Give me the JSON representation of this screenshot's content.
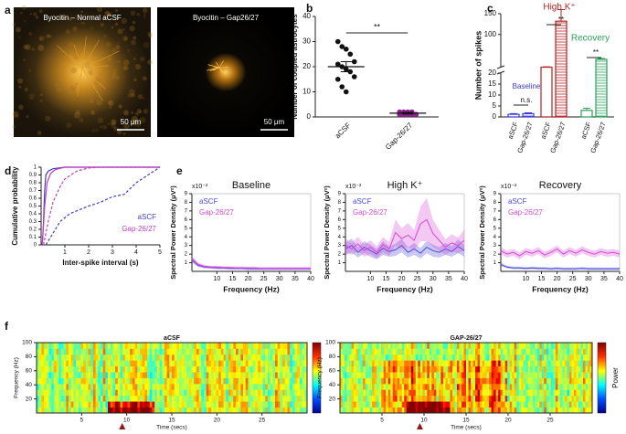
{
  "panel_labels": [
    "a",
    "b",
    "c",
    "d",
    "e",
    "f"
  ],
  "images": [
    {
      "caption": "Byocitin – Normal aCSF",
      "scale_bar": "50 μm"
    },
    {
      "caption": "Byocitin – Gap26/27",
      "scale_bar": "50 μm"
    }
  ],
  "chart_data": [
    {
      "type": "strip",
      "ylabel": "Number of coupled astrocytes",
      "categories": [
        "aCSF",
        "Gap-26/27"
      ],
      "values": [
        [
          30,
          28,
          27,
          25,
          22,
          21,
          20,
          19,
          18,
          16,
          15,
          12,
          10
        ],
        [
          2,
          2,
          2,
          2,
          1,
          1,
          1,
          1,
          1,
          1,
          1,
          1
        ]
      ],
      "colors": [
        "#111111",
        "#8e1f8e"
      ],
      "means": [
        20,
        1.5
      ],
      "mean_errors": [
        2,
        0.3
      ],
      "ylim": [
        0,
        40
      ],
      "yticks": [
        0,
        10,
        20,
        30,
        40
      ],
      "annotations": [
        "**"
      ]
    },
    {
      "type": "bar",
      "ylabel": "Number of spikes",
      "ylim": [
        0,
        150
      ],
      "ybreak": 20,
      "yticks": [
        0,
        5,
        10,
        15,
        20,
        100,
        150
      ],
      "series": [
        {
          "name": "Baseline",
          "color": "#3a3adb",
          "categories": [
            "aSCF",
            "Gap-26/27"
          ],
          "values": [
            1.2,
            1.5
          ],
          "errors": [
            0.3,
            0.4
          ]
        },
        {
          "name": "High K⁺",
          "color": "#b22222",
          "categories": [
            "aSCF",
            "Gap-26/27"
          ],
          "values": [
            21,
            132
          ],
          "errors": [
            1,
            28
          ]
        },
        {
          "name": "Recovery",
          "color": "#2ca05a",
          "categories": [
            "aCSF",
            "Gap-26/27"
          ],
          "values": [
            3,
            40
          ],
          "errors": [
            1,
            2
          ]
        }
      ],
      "annotations": [
        "n.s.",
        "**",
        "**"
      ]
    },
    {
      "type": "cdf",
      "ylabel": "Cumulative probability",
      "xlabel": "Inter-spike interval (s)",
      "xlim": [
        0,
        5
      ],
      "xticks": [
        1,
        2,
        3,
        4,
        5
      ],
      "ylim": [
        0,
        1
      ],
      "yticks": [
        0,
        0.1,
        0.2,
        0.3,
        0.4,
        0.5,
        0.6,
        0.7,
        0.8,
        0.9,
        1
      ],
      "series": [
        {
          "name": "aSCF",
          "color": "#4040c0",
          "style": "solid",
          "x": [
            0.05,
            0.1,
            0.15,
            0.2,
            0.3,
            0.5,
            1,
            2,
            5
          ],
          "values": [
            0,
            0.3,
            0.7,
            0.9,
            0.95,
            0.98,
            1,
            1,
            1
          ]
        },
        {
          "color": "#4040c0",
          "style": "dashed",
          "x": [
            0.2,
            0.5,
            0.8,
            1.2,
            1.6,
            2,
            2.5,
            3,
            3.5,
            4,
            4.5,
            5
          ],
          "values": [
            0,
            0.15,
            0.3,
            0.4,
            0.45,
            0.5,
            0.55,
            0.62,
            0.65,
            0.8,
            0.9,
            1
          ]
        },
        {
          "name": "Gap-26/27",
          "color": "#c040c0",
          "style": "solid",
          "x": [
            0.05,
            0.15,
            0.25,
            0.4,
            0.6,
            1,
            5
          ],
          "values": [
            0,
            0.5,
            0.8,
            0.92,
            0.97,
            1,
            1
          ]
        },
        {
          "color": "#c040c0",
          "style": "dashed",
          "x": [
            0.1,
            0.3,
            0.5,
            0.8,
            1,
            1.5,
            2,
            2.5,
            5
          ],
          "values": [
            0,
            0.3,
            0.55,
            0.75,
            0.85,
            0.95,
            0.99,
            1,
            1
          ]
        }
      ]
    },
    {
      "type": "band",
      "title": "Baseline",
      "exponent": "x10⁻²",
      "ylabel": "Spectral Power Density (μV²)",
      "xlabel": "Frequency (Hz)",
      "xlim": [
        2,
        40
      ],
      "xticks": [
        10,
        15,
        20,
        25,
        30,
        35,
        40
      ],
      "ylim": [
        0,
        9
      ],
      "yticks": [
        1,
        2,
        3,
        4,
        5,
        6,
        7,
        8,
        9
      ],
      "x": [
        2,
        4,
        6,
        8,
        10,
        12,
        14,
        16,
        18,
        20,
        22,
        24,
        26,
        28,
        30,
        32,
        34,
        36,
        38,
        40
      ],
      "series": [
        {
          "name": "aSCF",
          "color": "#4a4ad8",
          "values": [
            1.3,
            0.7,
            0.5,
            0.45,
            0.4,
            0.4,
            0.35,
            0.35,
            0.35,
            0.3,
            0.3,
            0.3,
            0.3,
            0.3,
            0.3,
            0.3,
            0.3,
            0.3,
            0.3,
            0.3
          ],
          "errors": [
            0.3,
            0.2,
            0.15,
            0.15,
            0.15,
            0.15,
            0.15,
            0.15,
            0.15,
            0.15,
            0.15,
            0.15,
            0.15,
            0.15,
            0.15,
            0.15,
            0.15,
            0.15,
            0.15,
            0.15
          ]
        },
        {
          "name": "Gap-26/27",
          "color": "#d84ad8",
          "values": [
            1.5,
            0.8,
            0.6,
            0.5,
            0.5,
            0.45,
            0.45,
            0.4,
            0.4,
            0.4,
            0.4,
            0.35,
            0.35,
            0.35,
            0.35,
            0.35,
            0.35,
            0.35,
            0.35,
            0.35
          ],
          "errors": [
            0.3,
            0.2,
            0.15,
            0.15,
            0.15,
            0.15,
            0.15,
            0.15,
            0.15,
            0.15,
            0.15,
            0.15,
            0.15,
            0.15,
            0.15,
            0.15,
            0.15,
            0.15,
            0.15,
            0.15
          ]
        }
      ]
    },
    {
      "type": "band",
      "title": "High K⁺",
      "exponent": "x10⁻²",
      "ylabel": "Spectral Power Density (μV²)",
      "xlabel": "Frequency (Hz)",
      "xlim": [
        2,
        40
      ],
      "xticks": [
        10,
        15,
        20,
        25,
        30,
        35,
        40
      ],
      "ylim": [
        0,
        9
      ],
      "yticks": [
        1,
        2,
        3,
        4,
        5,
        6,
        7,
        8,
        9
      ],
      "x": [
        2,
        4,
        6,
        8,
        10,
        12,
        14,
        16,
        18,
        20,
        22,
        24,
        26,
        28,
        30,
        32,
        34,
        36,
        38,
        40
      ],
      "series": [
        {
          "name": "aSCF",
          "color": "#4a4ad8",
          "values": [
            2.6,
            3.0,
            2.2,
            2.8,
            2.4,
            2.0,
            2.7,
            2.3,
            2.5,
            3.0,
            2.2,
            2.6,
            2.1,
            2.8,
            2.4,
            2.2,
            2.6,
            2.3,
            2.9,
            2.4
          ],
          "errors": [
            0.7,
            0.8,
            0.6,
            0.7,
            0.7,
            0.6,
            0.8,
            0.6,
            0.7,
            0.8,
            0.6,
            0.7,
            0.6,
            0.7,
            0.7,
            0.6,
            0.7,
            0.6,
            0.8,
            0.7
          ]
        },
        {
          "name": "Gap-26/27",
          "color": "#d84ad8",
          "values": [
            3.0,
            2.6,
            3.2,
            2.4,
            2.8,
            2.2,
            3.1,
            2.6,
            4.5,
            3.8,
            4.2,
            3.6,
            5.5,
            6.0,
            4.4,
            3.6,
            2.8,
            3.3,
            3.0,
            3.6
          ],
          "errors": [
            0.8,
            0.7,
            0.8,
            0.7,
            0.8,
            0.7,
            0.9,
            0.8,
            1.5,
            1.2,
            1.4,
            1.2,
            2.0,
            2.5,
            1.6,
            1.2,
            0.9,
            1.0,
            0.9,
            1.2
          ]
        }
      ]
    },
    {
      "type": "band",
      "title": "Recovery",
      "exponent": "x10⁻²",
      "ylabel": "Spectral Power Density (μV²)",
      "xlabel": "Frequency (Hz)",
      "xlim": [
        2,
        40
      ],
      "xticks": [
        10,
        15,
        20,
        25,
        30,
        35,
        40
      ],
      "ylim": [
        0,
        9
      ],
      "yticks": [
        1,
        2,
        3,
        4,
        5,
        6,
        7,
        8,
        9
      ],
      "x": [
        2,
        4,
        6,
        8,
        10,
        12,
        14,
        16,
        18,
        20,
        22,
        24,
        26,
        28,
        30,
        32,
        34,
        36,
        38,
        40
      ],
      "series": [
        {
          "name": "aSCF",
          "color": "#4a4ad8",
          "values": [
            0.8,
            0.5,
            0.4,
            0.4,
            0.35,
            0.4,
            0.35,
            0.35,
            0.3,
            0.35,
            0.3,
            0.3,
            0.3,
            0.35,
            0.3,
            0.3,
            0.3,
            0.3,
            0.3,
            0.3
          ],
          "errors": [
            0.2,
            0.15,
            0.15,
            0.15,
            0.15,
            0.15,
            0.15,
            0.15,
            0.15,
            0.15,
            0.15,
            0.15,
            0.15,
            0.15,
            0.15,
            0.15,
            0.15,
            0.15,
            0.15,
            0.15
          ]
        },
        {
          "name": "Gap-26/27",
          "color": "#d84ad8",
          "values": [
            2.4,
            2.0,
            2.2,
            1.8,
            2.3,
            2.1,
            2.4,
            1.9,
            2.2,
            2.6,
            2.0,
            2.4,
            2.1,
            2.5,
            2.2,
            2.0,
            2.3,
            2.1,
            2.2,
            2.0
          ],
          "errors": [
            0.4,
            0.4,
            0.4,
            0.4,
            0.4,
            0.4,
            0.4,
            0.4,
            0.4,
            0.4,
            0.4,
            0.4,
            0.4,
            0.4,
            0.4,
            0.4,
            0.4,
            0.4,
            0.4,
            0.4
          ]
        }
      ]
    },
    {
      "type": "spectrogram",
      "title": "aCSF",
      "ylabel": "Frequency (Hz)",
      "xlabel": "Time (secs)",
      "xlim": [
        0,
        30
      ],
      "xticks": [
        5,
        10,
        15,
        20,
        25
      ],
      "ylim": [
        0,
        100
      ],
      "yticks": [
        20,
        40,
        60,
        80,
        100
      ],
      "events": [
        9.5
      ]
    },
    {
      "type": "spectrogram",
      "title": "GAP-26/27",
      "ylabel": "Frequency (Hz)",
      "xlabel": "Time (secs)",
      "xlim": [
        0,
        30
      ],
      "xticks": [
        5,
        10,
        15,
        20,
        25
      ],
      "ylim": [
        0,
        100
      ],
      "yticks": [
        20,
        40,
        60,
        80,
        100
      ],
      "events": [
        9.5
      ],
      "colorbar_label": "Power"
    }
  ]
}
